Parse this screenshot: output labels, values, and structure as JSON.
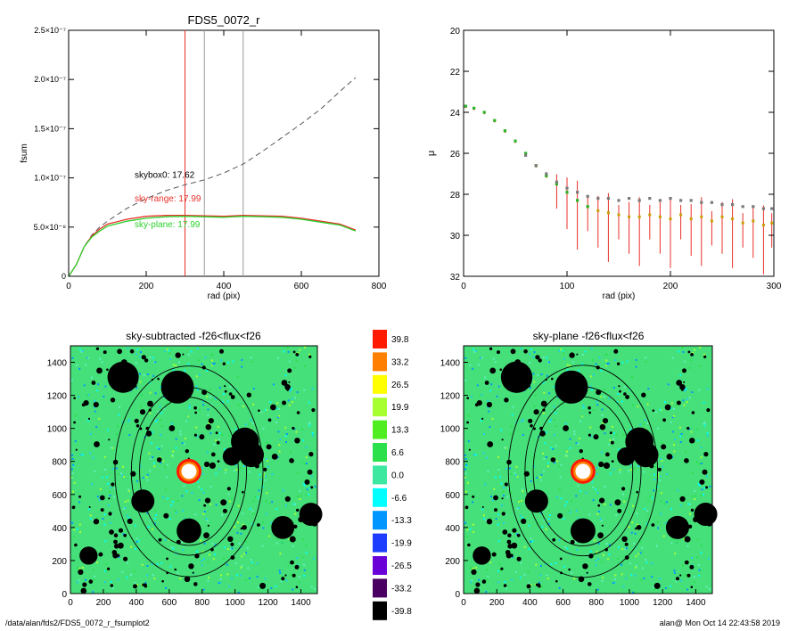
{
  "footer": {
    "path": "/data/alan/fds2/FDS5_0072_r_fsumplot2",
    "user_time": "alan@  Mon Oct 14 22:43:58 2019"
  },
  "chart_data": [
    {
      "type": "line",
      "title": "FDS5_0072_r",
      "xlabel": "rad (pix)",
      "ylabel": "fsum",
      "xlim": [
        0,
        800
      ],
      "ylim": [
        0,
        2.5e-07
      ],
      "x_ticks": [
        "0",
        "200",
        "400",
        "600",
        "800"
      ],
      "y_ticks": [
        "0",
        "5.0×10⁻⁸",
        "1.0×10⁻⁷",
        "1.5×10⁻⁷",
        "2.0×10⁻⁷",
        "2.5×10⁻⁷"
      ],
      "vertical_lines": [
        {
          "x": 300,
          "color": "#e8302a"
        },
        {
          "x": 350,
          "color": "#999999"
        },
        {
          "x": 450,
          "color": "#999999"
        }
      ],
      "annotations": [
        {
          "text": "skybox0: 17.62",
          "color": "#000000",
          "x": 170,
          "y": 1e-07
        },
        {
          "text": "sky-range: 17.99",
          "color": "#e8302a",
          "x": 170,
          "y": 7.6e-08
        },
        {
          "text": "sky-plane: 17.99",
          "color": "#2bd12b",
          "x": 170,
          "y": 5e-08
        }
      ],
      "series": [
        {
          "color": "#555555",
          "dash": true,
          "x": [
            0,
            20,
            40,
            60,
            80,
            100,
            150,
            200,
            250,
            300,
            350,
            400,
            450,
            500,
            550,
            600,
            650,
            700,
            740
          ],
          "y": [
            0,
            1.2e-08,
            3e-08,
            4.2e-08,
            5e-08,
            5.6e-08,
            6.9e-08,
            7.9e-08,
            8.7e-08,
            9.3e-08,
            9.8e-08,
            1.05e-07,
            1.14e-07,
            1.27e-07,
            1.41e-07,
            1.55e-07,
            1.7e-07,
            1.88e-07,
            2.02e-07
          ]
        },
        {
          "color": "#e8302a",
          "dash": false,
          "x": [
            0,
            20,
            40,
            60,
            80,
            100,
            150,
            200,
            250,
            300,
            350,
            400,
            450,
            500,
            550,
            600,
            650,
            700,
            740
          ],
          "y": [
            0,
            1.2e-08,
            3e-08,
            4.1e-08,
            4.8e-08,
            5.3e-08,
            5.8e-08,
            6.1e-08,
            6.2e-08,
            6.2e-08,
            6.15e-08,
            6.1e-08,
            6.2e-08,
            6.15e-08,
            6.1e-08,
            5.9e-08,
            5.6e-08,
            5.3e-08,
            4.7e-08
          ]
        },
        {
          "color": "#2bd12b",
          "dash": false,
          "x": [
            0,
            20,
            40,
            60,
            80,
            100,
            150,
            200,
            250,
            300,
            350,
            400,
            450,
            500,
            550,
            600,
            650,
            700,
            740
          ],
          "y": [
            0,
            1.2e-08,
            3e-08,
            4e-08,
            4.6e-08,
            5.1e-08,
            5.6e-08,
            5.9e-08,
            6.05e-08,
            6.1e-08,
            6.05e-08,
            6e-08,
            6.1e-08,
            6.05e-08,
            6e-08,
            5.8e-08,
            5.5e-08,
            5.2e-08,
            4.6e-08
          ]
        }
      ]
    },
    {
      "type": "scatter",
      "title": "",
      "xlabel": "rad (pix)",
      "ylabel": "μ",
      "xlim": [
        0,
        300
      ],
      "ylim": [
        32,
        20
      ],
      "x_ticks": [
        "0",
        "100",
        "200",
        "300"
      ],
      "y_ticks": [
        "20",
        "22",
        "24",
        "26",
        "28",
        "30",
        "32"
      ],
      "series": [
        {
          "color": "#e8302a",
          "points": "errorbars",
          "x": [
            2,
            10,
            20,
            30,
            40,
            50,
            60,
            70,
            80,
            90,
            100,
            110,
            120,
            130,
            140,
            150,
            160,
            170,
            180,
            190,
            200,
            210,
            220,
            230,
            240,
            250,
            260,
            270,
            280,
            290,
            298
          ],
          "y": [
            23.7,
            23.8,
            24.0,
            24.4,
            24.9,
            25.4,
            26.0,
            26.6,
            27.1,
            27.5,
            27.9,
            28.3,
            28.6,
            28.8,
            28.9,
            29.0,
            29.1,
            29.1,
            29.0,
            29.1,
            29.2,
            29.0,
            29.2,
            29.1,
            29.3,
            29.1,
            29.2,
            29.4,
            29.3,
            29.5,
            29.4
          ]
        },
        {
          "color": "#2bb52b",
          "points": "markers",
          "x": [
            2,
            10,
            20,
            30,
            40,
            50,
            60,
            70,
            80,
            90,
            100,
            110,
            120
          ],
          "y": [
            23.7,
            23.8,
            24.0,
            24.4,
            24.9,
            25.4,
            26.0,
            26.6,
            27.1,
            27.5,
            27.9,
            28.3,
            28.6
          ]
        },
        {
          "color": "#7a7a7a",
          "points": "markers",
          "x": [
            60,
            70,
            80,
            90,
            100,
            110,
            120,
            130,
            140,
            150,
            160,
            170,
            180,
            190,
            200,
            210,
            220,
            230,
            240,
            250,
            260,
            270,
            280,
            290,
            298
          ],
          "y": [
            26.1,
            26.6,
            27.0,
            27.4,
            27.7,
            27.9,
            28.1,
            28.2,
            28.2,
            28.3,
            28.2,
            28.3,
            28.2,
            28.3,
            28.2,
            28.3,
            28.3,
            28.4,
            28.4,
            28.5,
            28.5,
            28.6,
            28.6,
            28.7,
            28.7
          ]
        }
      ]
    },
    {
      "type": "heatmap",
      "title": "sky-subtracted -f26<flux<f26",
      "xlim": [
        0,
        1500
      ],
      "ylim": [
        0,
        1500
      ],
      "x_ticks": [
        "0",
        "200",
        "400",
        "600",
        "800",
        "1000",
        "1200",
        "1400"
      ],
      "y_ticks": [
        "0",
        "200",
        "400",
        "600",
        "800",
        "1000",
        "1200",
        "1400"
      ],
      "center": [
        720,
        740
      ],
      "ellipses": [
        {
          "rx": 300,
          "ry": 450
        },
        {
          "rx": 350,
          "ry": 510
        },
        {
          "rx": 450,
          "ry": 640
        }
      ],
      "masks": [
        {
          "x": 320,
          "y": 1310,
          "r": 95
        },
        {
          "x": 650,
          "y": 1250,
          "r": 100
        },
        {
          "x": 1060,
          "y": 920,
          "r": 85
        },
        {
          "x": 1100,
          "y": 840,
          "r": 75
        },
        {
          "x": 980,
          "y": 830,
          "r": 55
        },
        {
          "x": 440,
          "y": 560,
          "r": 70
        },
        {
          "x": 720,
          "y": 380,
          "r": 75
        },
        {
          "x": 1290,
          "y": 400,
          "r": 70
        },
        {
          "x": 1460,
          "y": 480,
          "r": 70
        },
        {
          "x": 110,
          "y": 230,
          "r": 55
        }
      ]
    },
    {
      "type": "heatmap",
      "title": "sky-plane -f26<flux<f26",
      "xlim": [
        0,
        1500
      ],
      "ylim": [
        0,
        1500
      ],
      "x_ticks": [
        "0",
        "200",
        "400",
        "600",
        "800",
        "1000",
        "1200",
        "1400"
      ],
      "y_ticks": [
        "0",
        "200",
        "400",
        "600",
        "800",
        "1000",
        "1200",
        "1400"
      ],
      "center": [
        720,
        740
      ],
      "ellipses": [
        {
          "rx": 300,
          "ry": 450
        },
        {
          "rx": 350,
          "ry": 510
        },
        {
          "rx": 450,
          "ry": 640
        }
      ],
      "masks": [
        {
          "x": 320,
          "y": 1310,
          "r": 95
        },
        {
          "x": 650,
          "y": 1250,
          "r": 100
        },
        {
          "x": 1060,
          "y": 920,
          "r": 85
        },
        {
          "x": 1100,
          "y": 840,
          "r": 75
        },
        {
          "x": 980,
          "y": 830,
          "r": 55
        },
        {
          "x": 440,
          "y": 560,
          "r": 70
        },
        {
          "x": 720,
          "y": 380,
          "r": 75
        },
        {
          "x": 1290,
          "y": 400,
          "r": 70
        },
        {
          "x": 1460,
          "y": 480,
          "r": 70
        },
        {
          "x": 110,
          "y": 230,
          "r": 55
        }
      ]
    }
  ],
  "colorbar": {
    "labels": [
      "39.8",
      "33.2",
      "26.5",
      "19.9",
      "13.3",
      "6.6",
      "0.0",
      "-6.6",
      "-13.3",
      "-19.9",
      "-26.5",
      "-33.2",
      "-39.8"
    ],
    "colors": [
      "#ff1a00",
      "#ff8000",
      "#ffff00",
      "#a8ff30",
      "#50ee20",
      "#2be04a",
      "#3ce8a0",
      "#00ffff",
      "#0096ff",
      "#1e3cff",
      "#6a00d8",
      "#4a0060",
      "#000000"
    ]
  }
}
